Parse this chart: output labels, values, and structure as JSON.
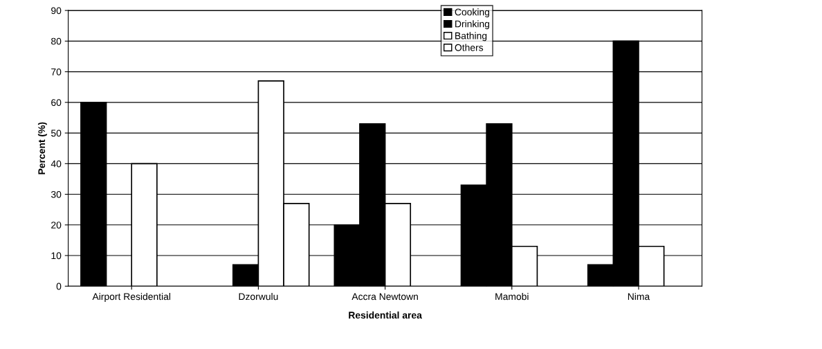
{
  "chart_data": {
    "type": "bar",
    "xlabel": "Residential area",
    "ylabel": "Percent (%)",
    "categories": [
      "Airport Residential",
      "Dzorwulu",
      "Accra Newtown",
      "Mamobi",
      "Nima"
    ],
    "series": [
      {
        "name": "Cooking",
        "color": "#000000",
        "values": [
          60,
          0,
          20,
          33,
          7
        ]
      },
      {
        "name": "Drinking",
        "color": "#000000",
        "values": [
          0,
          7,
          53,
          53,
          80
        ]
      },
      {
        "name": "Bathing",
        "color": "#ffffff",
        "values": [
          40,
          67,
          27,
          13,
          13
        ]
      },
      {
        "name": "Others",
        "color": "#ffffff",
        "values": [
          0,
          27,
          0,
          0,
          0
        ]
      }
    ],
    "ylim": [
      0,
      90
    ],
    "yticks": [
      0,
      10,
      20,
      30,
      40,
      50,
      60,
      70,
      80,
      90
    ],
    "grid": "y",
    "legend": "top"
  }
}
